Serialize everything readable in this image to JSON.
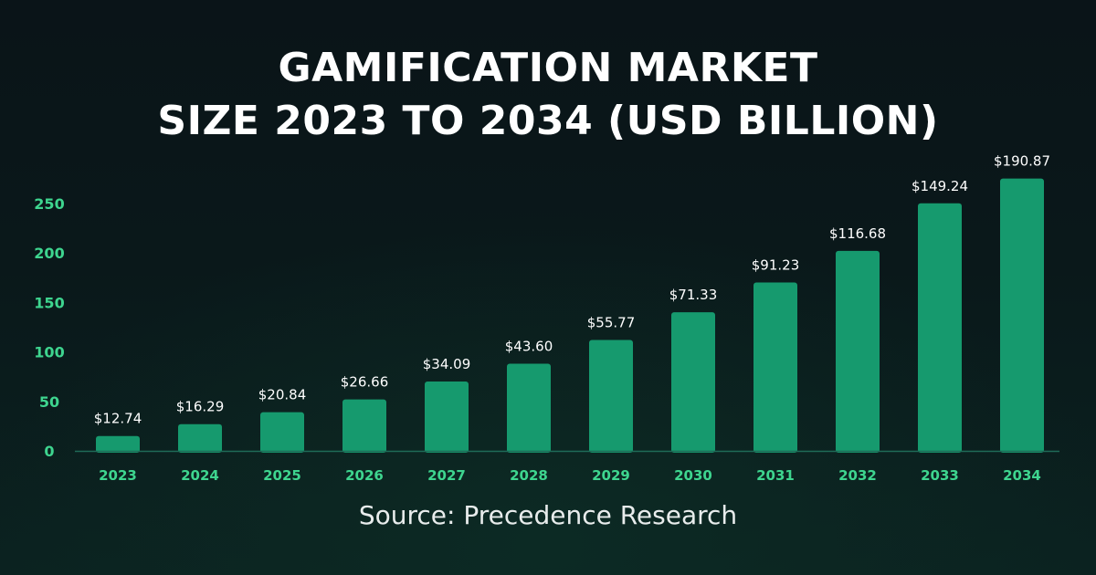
{
  "title_line1": "GAMIFICATION MARKET",
  "title_line2": "SIZE 2023 TO 2034 (USD BILLION)",
  "source": "Source: Precedence Research",
  "colors": {
    "bar": "#169a6e",
    "axis_tick_label": "#3ed58f",
    "value_label": "#ffffff",
    "baseline": "#1f6b58"
  },
  "chart_data": {
    "type": "bar",
    "categories": [
      "2023",
      "2024",
      "2025",
      "2026",
      "2027",
      "2028",
      "2029",
      "2030",
      "2031",
      "2032",
      "2033",
      "2034"
    ],
    "values": [
      12.74,
      16.29,
      20.84,
      26.66,
      34.09,
      43.6,
      55.77,
      71.33,
      91.23,
      116.68,
      149.24,
      190.87
    ],
    "bar_heights_on_axis": [
      15,
      27,
      39,
      52,
      70,
      88,
      112,
      140,
      170,
      202,
      250,
      275
    ],
    "value_labels": [
      "$12.74",
      "$16.29",
      "$20.84",
      "$26.66",
      "$34.09",
      "$43.60",
      "$55.77",
      "$71.33",
      "$91.23",
      "$116.68",
      "$149.24",
      "$190.87"
    ],
    "y_ticks": [
      0,
      50,
      100,
      150,
      200,
      250
    ],
    "ylim": [
      0,
      275
    ],
    "grid": false,
    "legend": "none"
  }
}
